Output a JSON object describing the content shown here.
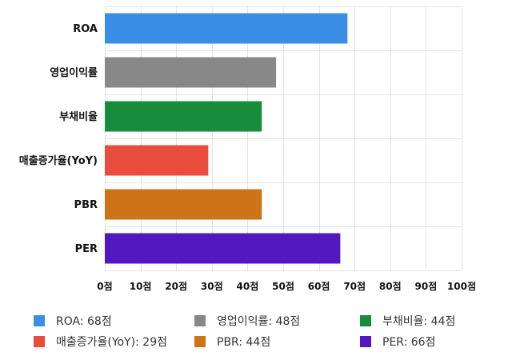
{
  "chart_data": {
    "type": "bar",
    "orientation": "horizontal",
    "categories": [
      "ROA",
      "영업이익률",
      "부채비율",
      "매출증가율(YoY)",
      "PBR",
      "PER"
    ],
    "values": [
      68,
      48,
      44,
      29,
      44,
      66
    ],
    "colors": [
      "#3a8ee6",
      "#888888",
      "#178c3c",
      "#e84c3d",
      "#cd7417",
      "#5018bd"
    ],
    "xlim": [
      0,
      100
    ],
    "xticks": [
      "0점",
      "10점",
      "20점",
      "30점",
      "40점",
      "50점",
      "60점",
      "70점",
      "80점",
      "90점",
      "100점"
    ],
    "grid": true,
    "legend": {
      "placement": "bottom",
      "items": [
        {
          "label": "ROA: 68점",
          "color": "#3a8ee6"
        },
        {
          "label": "영업이익률: 48점",
          "color": "#888888"
        },
        {
          "label": "부채비율: 44점",
          "color": "#178c3c"
        },
        {
          "label": "매출증가율(YoY): 29점",
          "color": "#e84c3d"
        },
        {
          "label": "PBR: 44점",
          "color": "#cd7417"
        },
        {
          "label": "PER: 66점",
          "color": "#5018bd"
        }
      ]
    }
  }
}
